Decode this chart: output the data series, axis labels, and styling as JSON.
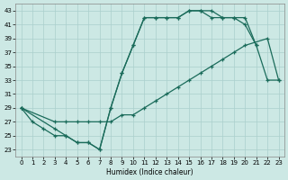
{
  "xlabel": "Humidex (Indice chaleur)",
  "bg_color": "#cce8e4",
  "line_color": "#1a6b5a",
  "grid_color": "#aacfcc",
  "xlim": [
    -0.5,
    23.5
  ],
  "ylim": [
    22,
    44
  ],
  "xticks": [
    0,
    1,
    2,
    3,
    4,
    5,
    6,
    7,
    8,
    9,
    10,
    11,
    12,
    13,
    14,
    15,
    16,
    17,
    18,
    19,
    20,
    21,
    22,
    23
  ],
  "yticks": [
    23,
    25,
    27,
    29,
    31,
    33,
    35,
    37,
    39,
    41,
    43
  ],
  "curve1_x": [
    0,
    1,
    2,
    3,
    4,
    5,
    6,
    7,
    8,
    9,
    10,
    11,
    12,
    13,
    14,
    15,
    16,
    17,
    18,
    19,
    20,
    21
  ],
  "curve1_y": [
    29,
    27,
    26,
    25,
    25,
    24,
    24,
    23,
    29,
    34,
    38,
    42,
    42,
    42,
    42,
    43,
    43,
    43,
    42,
    42,
    42,
    38
  ],
  "curve2_x": [
    0,
    3,
    4,
    5,
    6,
    7,
    8,
    9,
    10,
    11,
    12,
    13,
    14,
    15,
    16,
    17,
    18,
    19,
    20,
    22,
    23
  ],
  "curve2_y": [
    29,
    27,
    27,
    27,
    27,
    27,
    27,
    28,
    28,
    29,
    30,
    31,
    32,
    33,
    34,
    35,
    36,
    37,
    38,
    39,
    33
  ],
  "curve3_x": [
    0,
    3,
    4,
    5,
    6,
    7,
    8,
    9,
    10,
    11,
    12,
    13,
    14,
    15,
    16,
    17,
    18,
    19,
    20,
    21,
    22,
    23
  ],
  "curve3_y": [
    29,
    26,
    25,
    24,
    24,
    23,
    29,
    34,
    38,
    42,
    42,
    42,
    42,
    43,
    43,
    42,
    42,
    42,
    41,
    38,
    33,
    33
  ]
}
